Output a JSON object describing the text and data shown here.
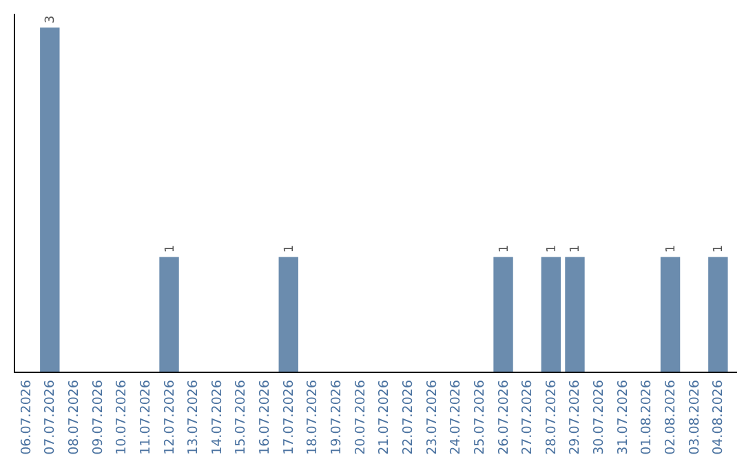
{
  "chart_data": {
    "type": "bar",
    "categories": [
      "06.07.2026",
      "07.07.2026",
      "08.07.2026",
      "09.07.2026",
      "10.07.2026",
      "11.07.2026",
      "12.07.2026",
      "13.07.2026",
      "14.07.2026",
      "15.07.2026",
      "16.07.2026",
      "17.07.2026",
      "18.07.2026",
      "19.07.2026",
      "20.07.2026",
      "21.07.2026",
      "22.07.2026",
      "23.07.2026",
      "24.07.2026",
      "25.07.2026",
      "26.07.2026",
      "27.07.2026",
      "28.07.2026",
      "29.07.2026",
      "30.07.2026",
      "31.07.2026",
      "01.08.2026",
      "02.08.2026",
      "03.08.2026",
      "04.08.2026"
    ],
    "values": [
      0,
      3,
      0,
      0,
      0,
      0,
      1,
      0,
      0,
      0,
      0,
      1,
      0,
      0,
      0,
      0,
      0,
      0,
      0,
      0,
      1,
      0,
      1,
      1,
      0,
      0,
      0,
      1,
      0,
      1
    ],
    "value_labels": [
      null,
      "3",
      null,
      null,
      null,
      null,
      "1",
      null,
      null,
      null,
      null,
      "1",
      null,
      null,
      null,
      null,
      null,
      null,
      null,
      null,
      "1",
      null,
      "1",
      "1",
      null,
      null,
      null,
      "1",
      null,
      "1"
    ],
    "color": "#6b8cae"
  }
}
